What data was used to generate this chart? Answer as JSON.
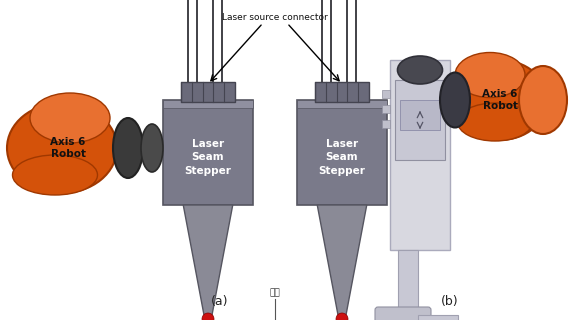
{
  "bg_color": "#ffffff",
  "fig_width": 5.7,
  "fig_height": 3.2,
  "dpi": 100,
  "label_a": "(a)",
  "label_b": "(b)",
  "laser_seam_stepper": "Laser\nSeam\nStepper",
  "axis6_robot": "Axis 6\nRobot",
  "laser_source_connector": "Laser source connector",
  "parts_label": "部件",
  "orange_color": "#D4520A",
  "dark_orange": "#A03800",
  "orange_light": "#E87030",
  "gray_box": "#7A7A8A",
  "light_gray": "#C8C8CC",
  "very_light_gray": "#E0E0E8",
  "dark_gray": "#555560",
  "connector_gray": "#888890",
  "black": "#111111",
  "red_dot": "#CC1010",
  "steel_dark": "#5A5A66",
  "steel_med": "#909098"
}
